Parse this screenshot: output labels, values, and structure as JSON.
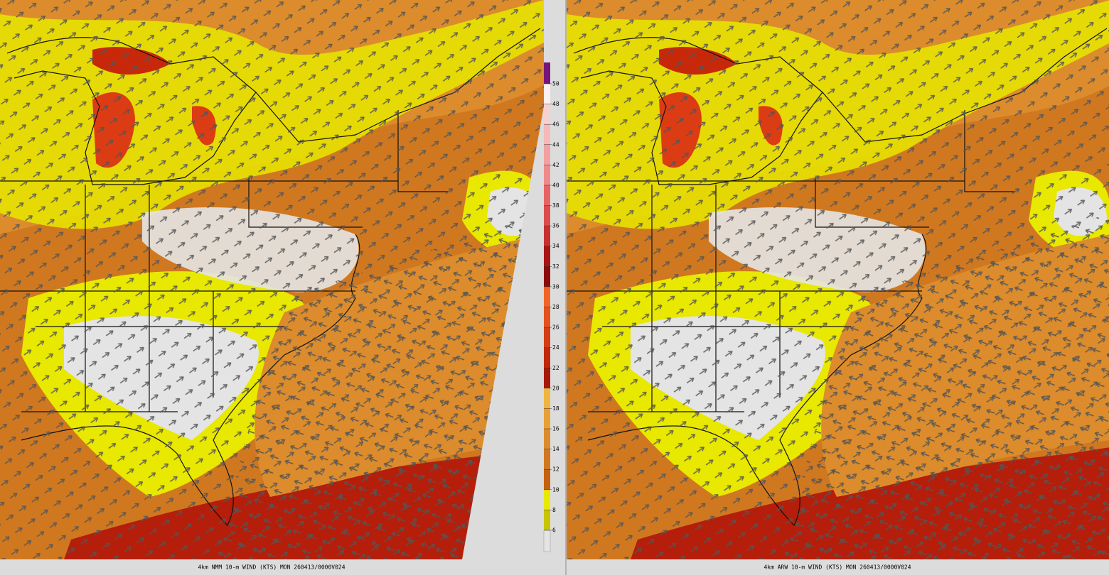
{
  "panels": [
    {
      "caption": "4km NMM 10-m WIND (KTS) MON 260413/0000V024"
    },
    {
      "caption": "4km ARW 10-m WIND (KTS) MON 260413/0000V024"
    }
  ],
  "colorbar": {
    "ticks": [
      6,
      8,
      10,
      12,
      14,
      16,
      18,
      20,
      22,
      24,
      26,
      28,
      30,
      32,
      34,
      36,
      38,
      40,
      42,
      44,
      46,
      48,
      50
    ],
    "colors": [
      "#e4e4e4",
      "#c8c400",
      "#e8e800",
      "#c4620e",
      "#d07820",
      "#dc8c2c",
      "#e8a034",
      "#f0b440",
      "#a81808",
      "#c0280c",
      "#d43c14",
      "#e4501e",
      "#f06428",
      "#8c0a0a",
      "#a81414",
      "#c83030",
      "#dc4c4c",
      "#e86464",
      "#f08a8a",
      "#f2a0a0",
      "#f6b8b8",
      "#f9d0d0",
      "#fdf0f0",
      "#781478"
    ]
  }
}
